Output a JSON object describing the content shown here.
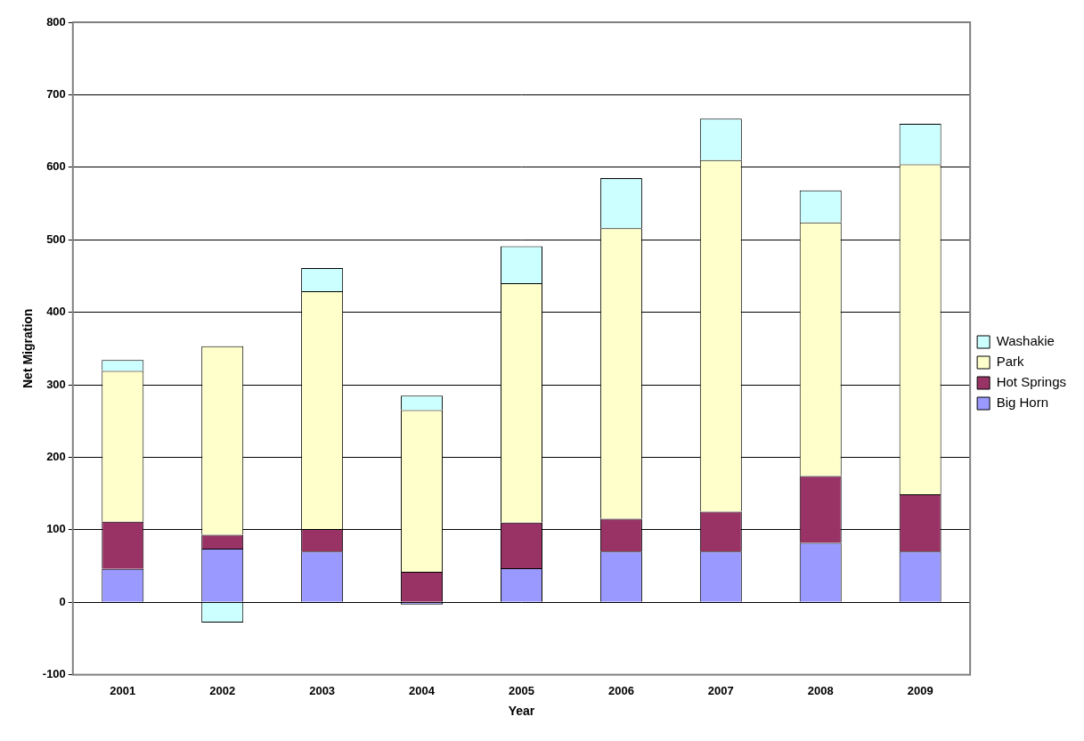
{
  "chart_data": {
    "type": "bar",
    "stacked": true,
    "xlabel": "Year",
    "ylabel": "Net Migration",
    "categories": [
      "2001",
      "2002",
      "2003",
      "2004",
      "2005",
      "2006",
      "2007",
      "2008",
      "2009"
    ],
    "series": [
      {
        "name": "Big Horn",
        "color": "#9999ff",
        "values": [
          46,
          74,
          70,
          -3,
          47,
          70,
          70,
          82,
          70
        ]
      },
      {
        "name": "Hot Springs",
        "color": "#993366",
        "values": [
          65,
          19,
          31,
          42,
          63,
          45,
          55,
          92,
          79
        ]
      },
      {
        "name": "Park",
        "color": "#ffffcc",
        "values": [
          208,
          260,
          328,
          223,
          330,
          401,
          485,
          350,
          455
        ]
      },
      {
        "name": "Washakie",
        "color": "#ccffff",
        "values": [
          15,
          -28,
          32,
          20,
          51,
          69,
          57,
          44,
          56
        ]
      }
    ],
    "ylim": [
      -100,
      800
    ],
    "yticks": [
      -100,
      0,
      100,
      200,
      300,
      400,
      500,
      600,
      700,
      800
    ],
    "grid": true,
    "legend": "right"
  }
}
